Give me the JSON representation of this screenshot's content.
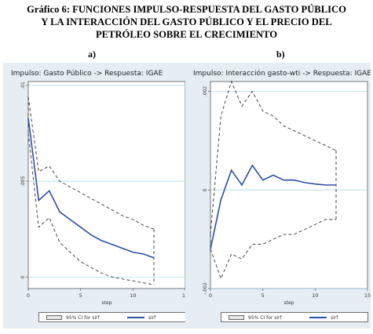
{
  "title": {
    "line1": "Gráfico 6: FUNCIONES IMPULSO-RESPUESTA DEL GASTO PÚBLICO",
    "line2": "Y LA INTERACCIÓN DEL GASTO PÚBLICO Y EL PRECIO DEL",
    "line3": "PETRÓLEO SOBRE EL CRECIMIENTO"
  },
  "colors": {
    "panel_bg": "#e6eef4",
    "irf_line": "#2b4ea6",
    "ci_line": "#333333",
    "zero_line": "#9fd3e6"
  },
  "chart_data": [
    {
      "type": "line",
      "panel_label": "a)",
      "title": "Impulso: Gasto Público -> Respuesta: IGAE",
      "xlabel": "step",
      "x_ticks": [
        "0",
        "5",
        "10",
        "15"
      ],
      "y_ticks": [
        "0",
        ".005",
        ".01"
      ],
      "xlim": [
        0,
        15
      ],
      "ylim": [
        -0.0006,
        0.0102
      ],
      "grid": true,
      "legend_position": "bottom",
      "x": [
        0,
        1,
        2,
        3,
        4,
        5,
        6,
        7,
        8,
        9,
        10,
        11,
        12
      ],
      "series": [
        {
          "name": "irf",
          "style": "solid",
          "values": [
            0.0083,
            0.004,
            0.0045,
            0.0034,
            0.003,
            0.0026,
            0.0022,
            0.0019,
            0.0017,
            0.0015,
            0.0013,
            0.0012,
            0.001
          ]
        },
        {
          "name": "95% CI for irf (upper)",
          "style": "dashed",
          "values": [
            0.0094,
            0.0055,
            0.0058,
            0.005,
            0.0047,
            0.0044,
            0.0041,
            0.0038,
            0.0035,
            0.0032,
            0.003,
            0.0027,
            0.0025
          ]
        },
        {
          "name": "95% CI for irf (lower)",
          "style": "dashed",
          "values": [
            0.0075,
            0.0026,
            0.0031,
            0.0018,
            0.0013,
            0.0008,
            0.0005,
            0.0002,
            0.0,
            -0.0001,
            -0.0002,
            -0.0003,
            -0.0004
          ]
        }
      ],
      "legend": {
        "ci": "95% CI for sirf",
        "irf": "sirf"
      }
    },
    {
      "type": "line",
      "panel_label": "b)",
      "title": "Impulso: Interacción gasto-wti -> Respuesta: IGAE",
      "xlabel": "step",
      "x_ticks": [
        "0",
        "5",
        "10",
        "15"
      ],
      "y_ticks": [
        "-.002",
        "0",
        ".002"
      ],
      "xlim": [
        0,
        15
      ],
      "ylim": [
        -0.002,
        0.0022
      ],
      "grid": true,
      "legend_position": "bottom",
      "x": [
        0,
        1,
        2,
        3,
        4,
        5,
        6,
        7,
        8,
        9,
        10,
        11,
        12
      ],
      "series": [
        {
          "name": "irf",
          "style": "solid",
          "values": [
            -0.0012,
            -0.0002,
            0.0004,
            0.0001,
            0.0005,
            0.0002,
            0.0003,
            0.0002,
            0.0002,
            0.00015,
            0.00012,
            0.0001,
            0.0001
          ]
        },
        {
          "name": "95% CI for irf (upper)",
          "style": "dashed",
          "values": [
            -0.0009,
            0.0015,
            0.0022,
            0.0017,
            0.002,
            0.0016,
            0.0015,
            0.0013,
            0.0012,
            0.0011,
            0.001,
            0.0009,
            0.0008
          ]
        },
        {
          "name": "95% CI for irf (lower)",
          "style": "dashed",
          "values": [
            -0.0012,
            -0.0018,
            -0.0013,
            -0.0014,
            -0.0011,
            -0.0011,
            -0.001,
            -0.0009,
            -0.0009,
            -0.0008,
            -0.0007,
            -0.0006,
            -0.0006
          ]
        }
      ],
      "legend": {
        "ci": "95% CI for sirf",
        "irf": "sirf"
      }
    }
  ]
}
